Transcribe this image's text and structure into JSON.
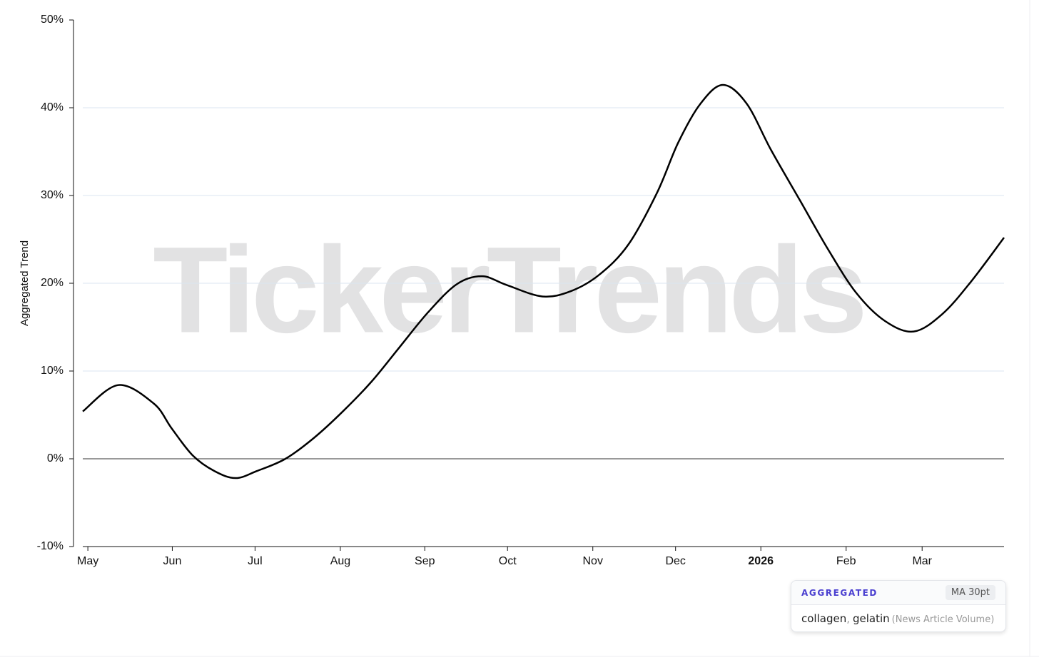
{
  "chart_data": {
    "type": "line",
    "y_label": "Aggregated Trend",
    "watermark": "TickerTrends",
    "x": [
      -0.06,
      0.36,
      0.78,
      0.99,
      1.24,
      1.5,
      1.75,
      2.0,
      2.34,
      2.68,
      3.02,
      3.36,
      3.69,
      4.03,
      4.37,
      4.67,
      4.96,
      5.38,
      5.72,
      6.06,
      6.4,
      6.74,
      6.99,
      7.25,
      7.52,
      7.8,
      8.09,
      8.43,
      8.77,
      9.1,
      9.44,
      9.78,
      10.12,
      10.46,
      10.85
    ],
    "series": [
      {
        "name": "Aggregated",
        "color": "#000000",
        "values": [
          5.4,
          8.4,
          6.3,
          3.5,
          0.4,
          -1.4,
          -2.2,
          -1.4,
          0,
          2.4,
          5.4,
          8.8,
          12.7,
          16.7,
          19.9,
          20.8,
          19.8,
          18.5,
          19.1,
          21.0,
          24.4,
          30.3,
          36.0,
          40.4,
          42.6,
          40.5,
          35.2,
          29.5,
          23.8,
          18.9,
          15.7,
          14.5,
          16.5,
          20.2,
          25.2
        ]
      }
    ],
    "xlim": [
      -0.17,
      10.85
    ],
    "xticks": [
      {
        "value": 0,
        "label": "May"
      },
      {
        "value": 1,
        "label": "Jun"
      },
      {
        "value": 1.98,
        "label": "Jul"
      },
      {
        "value": 2.99,
        "label": "Aug"
      },
      {
        "value": 3.99,
        "label": "Sep"
      },
      {
        "value": 4.97,
        "label": "Oct"
      },
      {
        "value": 5.98,
        "label": "Nov"
      },
      {
        "value": 6.96,
        "label": "Dec"
      },
      {
        "value": 7.97,
        "label": "2026"
      },
      {
        "value": 8.98,
        "label": "Feb"
      },
      {
        "value": 9.88,
        "label": "Mar"
      }
    ],
    "ylim": [
      -10,
      50
    ],
    "yticks": [
      {
        "value": -10,
        "label": "-10%"
      },
      {
        "value": 0,
        "label": "0%"
      },
      {
        "value": 10,
        "label": "10%"
      },
      {
        "value": 20,
        "label": "20%"
      },
      {
        "value": 30,
        "label": "30%"
      },
      {
        "value": 40,
        "label": "40%"
      },
      {
        "value": 50,
        "label": "50%"
      }
    ],
    "grid": true,
    "legend": {
      "badge": "AGGREGATED",
      "method": "MA 30pt",
      "terms": [
        "collagen",
        "gelatin"
      ],
      "separator": ",",
      "source": "(News Article Volume)"
    }
  }
}
